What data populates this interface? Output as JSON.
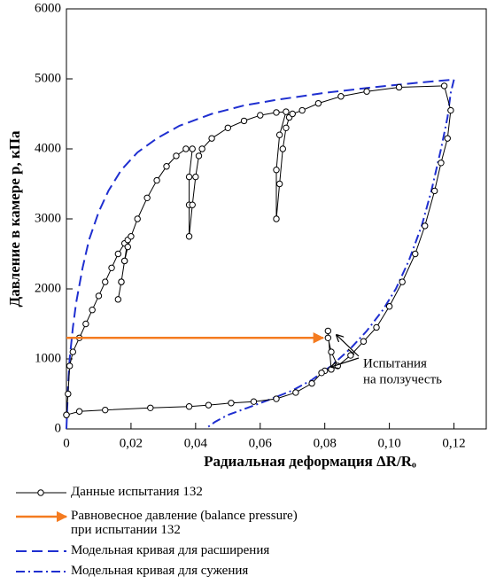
{
  "chart_data": {
    "type": "line",
    "xlabel": "Радиальная деформация ΔR/Rₒ",
    "ylabel": "Давление в камере p, кПа",
    "annotation": [
      "Испытания",
      "на ползучесть"
    ],
    "xlim": [
      0,
      0.13
    ],
    "ylim": [
      0,
      6000
    ],
    "xticks": [
      {
        "value": 0,
        "label": "0"
      },
      {
        "value": 0.02,
        "label": "0,02"
      },
      {
        "value": 0.04,
        "label": "0,04"
      },
      {
        "value": 0.06,
        "label": "0,06"
      },
      {
        "value": 0.08,
        "label": "0,08"
      },
      {
        "value": 0.1,
        "label": "0,10"
      },
      {
        "value": 0.12,
        "label": "0,12"
      }
    ],
    "yticks": [
      0,
      1000,
      2000,
      3000,
      4000,
      5000,
      6000
    ],
    "series": [
      {
        "name": "Данные испытания 132",
        "color": "#000000",
        "style": "solid",
        "marker": "circle",
        "x": [
          0,
          0.0005,
          0.001,
          0.002,
          0.004,
          0.006,
          0.008,
          0.01,
          0.012,
          0.014,
          0.016,
          0.018,
          0.019,
          0.018,
          0.017,
          0.016,
          0.017,
          0.018,
          0.019,
          0.02,
          0.022,
          0.025,
          0.028,
          0.031,
          0.034,
          0.037,
          0.039,
          0.038,
          0.038,
          0.038,
          0.039,
          0.04,
          0.041,
          0.042,
          0.045,
          0.05,
          0.055,
          0.06,
          0.065,
          0.068,
          0.066,
          0.065,
          0.065,
          0.066,
          0.067,
          0.068,
          0.069,
          0.07,
          0.073,
          0.078,
          0.085,
          0.093,
          0.103,
          0.117,
          0.119,
          0.118,
          0.116,
          0.114,
          0.111,
          0.108,
          0.104,
          0.1,
          0.096,
          0.092,
          0.088,
          0.084,
          0.082,
          0.081,
          0.081,
          0.082,
          0.08,
          0.079,
          0.076,
          0.071,
          0.065,
          0.058,
          0.051,
          0.044,
          0.038,
          0.026,
          0.012,
          0.004,
          0
        ],
        "values": [
          200,
          500,
          900,
          1100,
          1300,
          1500,
          1700,
          1900,
          2100,
          2300,
          2500,
          2650,
          2700,
          2400,
          2100,
          1850,
          2100,
          2400,
          2600,
          2750,
          3000,
          3300,
          3550,
          3750,
          3900,
          4000,
          4000,
          3600,
          3200,
          2750,
          3200,
          3600,
          3900,
          4000,
          4150,
          4300,
          4400,
          4480,
          4520,
          4530,
          4200,
          3700,
          3000,
          3500,
          4000,
          4300,
          4450,
          4500,
          4550,
          4650,
          4750,
          4820,
          4880,
          4900,
          4550,
          4150,
          3800,
          3400,
          2900,
          2500,
          2100,
          1750,
          1450,
          1250,
          1050,
          900,
          1100,
          1300,
          1400,
          850,
          830,
          800,
          650,
          520,
          430,
          390,
          370,
          340,
          320,
          300,
          270,
          250,
          200
        ]
      },
      {
        "name": "Равновесное давление (balance pressure)\nпри испытании 132",
        "color": "#f47b20",
        "style": "solid",
        "marker": "arrow",
        "x": [
          0,
          0.0795
        ],
        "values": [
          1300,
          1300
        ]
      },
      {
        "name": "Модельная кривая для расширения",
        "color": "#1f2fd0",
        "style": "dashed",
        "marker": "none",
        "x": [
          0,
          0.0005,
          0.001,
          0.002,
          0.003,
          0.005,
          0.007,
          0.01,
          0.013,
          0.017,
          0.022,
          0.028,
          0.035,
          0.045,
          0.055,
          0.065,
          0.08,
          0.095,
          0.11,
          0.12
        ],
        "values": [
          0,
          600,
          1000,
          1450,
          1800,
          2300,
          2700,
          3100,
          3400,
          3700,
          3950,
          4150,
          4330,
          4500,
          4620,
          4700,
          4800,
          4880,
          4950,
          4990
        ]
      },
      {
        "name": "Модельная кривая для сужения",
        "color": "#1f2fd0",
        "style": "dashdot",
        "marker": "none",
        "x": [
          0.12,
          0.119,
          0.118,
          0.116,
          0.113,
          0.11,
          0.106,
          0.102,
          0.098,
          0.093,
          0.088,
          0.082,
          0.076,
          0.07,
          0.063,
          0.056,
          0.05,
          0.046,
          0.043
        ],
        "values": [
          4990,
          4800,
          4450,
          4000,
          3400,
          2900,
          2400,
          2000,
          1700,
          1400,
          1150,
          900,
          700,
          550,
          420,
          300,
          200,
          100,
          0
        ]
      }
    ]
  }
}
